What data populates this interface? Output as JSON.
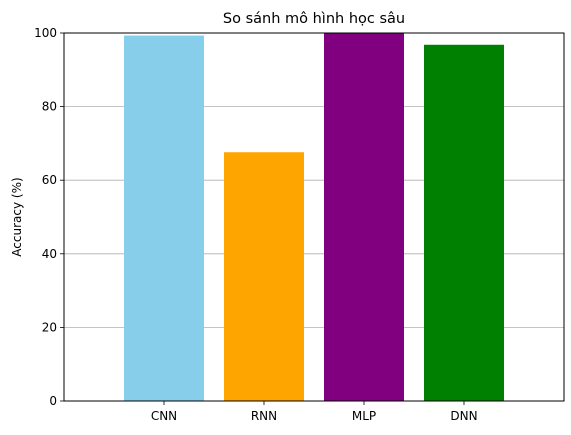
{
  "chart_data": {
    "type": "bar",
    "title": "So sánh mô hình học sâu",
    "xlabel": "",
    "ylabel": "Accuracy (%)",
    "categories": [
      "CNN",
      "RNN",
      "MLP",
      "DNN"
    ],
    "values": [
      99.3,
      67.6,
      100,
      96.8
    ],
    "colors": [
      "#87ceeb",
      "#ffa500",
      "#800080",
      "#008000"
    ],
    "ylim": [
      0,
      100
    ],
    "yticks": [
      0,
      20,
      40,
      60,
      80,
      100
    ],
    "grid": "y",
    "grid_color": "#b0b0b0",
    "legend": "none"
  }
}
